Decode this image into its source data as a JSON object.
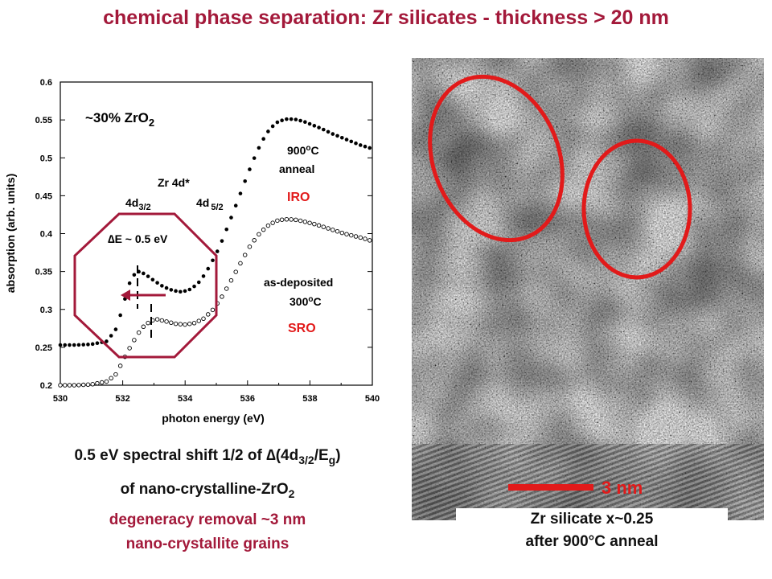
{
  "title": "chemical phase separation: Zr silicates - thickness > 20 nm",
  "chart_data": {
    "type": "scatter",
    "xlabel": "photon energy (eV)",
    "ylabel": "absorption (arb. units)",
    "xlim": [
      530,
      540
    ],
    "ylim": [
      0.2,
      0.6
    ],
    "xticks": [
      "530",
      "532",
      "534",
      "536",
      "538",
      "540"
    ],
    "yticks": [
      "0.2",
      "0.25",
      "0.3",
      "0.35",
      "0.4",
      "0.45",
      "0.5",
      "0.55",
      "0.6"
    ],
    "grid": false,
    "series": [
      {
        "marker": "filled-circle",
        "x": [
          530.0,
          530.5,
          531.0,
          531.5,
          531.8,
          532.0,
          532.2,
          532.4,
          532.5,
          532.7,
          533.0,
          533.3,
          533.6,
          533.9,
          534.2,
          534.5,
          534.8,
          535.1,
          535.4,
          535.7,
          536.0,
          536.3,
          536.6,
          536.9,
          537.2,
          537.5,
          537.8,
          538.1,
          538.4,
          538.7,
          539.0,
          539.3,
          539.6,
          540.0
        ],
        "y": [
          0.253,
          0.253,
          0.254,
          0.258,
          0.275,
          0.303,
          0.333,
          0.348,
          0.35,
          0.347,
          0.338,
          0.33,
          0.325,
          0.323,
          0.327,
          0.338,
          0.358,
          0.382,
          0.413,
          0.445,
          0.478,
          0.508,
          0.532,
          0.546,
          0.551,
          0.551,
          0.548,
          0.543,
          0.538,
          0.532,
          0.527,
          0.522,
          0.517,
          0.512
        ]
      },
      {
        "marker": "open-circle",
        "x": [
          530.0,
          530.5,
          531.0,
          531.5,
          531.8,
          532.0,
          532.3,
          532.6,
          532.9,
          533.1,
          533.4,
          533.7,
          534.0,
          534.3,
          534.6,
          534.9,
          535.2,
          535.5,
          535.8,
          536.1,
          536.4,
          536.7,
          537.0,
          537.3,
          537.6,
          537.9,
          538.2,
          538.5,
          538.8,
          539.1,
          539.4,
          539.7,
          540.0
        ],
        "y": [
          0.2,
          0.2,
          0.201,
          0.205,
          0.215,
          0.232,
          0.255,
          0.275,
          0.285,
          0.287,
          0.284,
          0.281,
          0.28,
          0.282,
          0.288,
          0.3,
          0.318,
          0.34,
          0.363,
          0.385,
          0.401,
          0.412,
          0.418,
          0.419,
          0.418,
          0.415,
          0.412,
          0.408,
          0.404,
          0.4,
          0.397,
          0.394,
          0.39
        ]
      }
    ],
    "annotations": {
      "composition": "~30% ZrO",
      "composition_sub": "2",
      "zr4d": "Zr 4d*",
      "d32": "4d",
      "d32_sub": "3/2",
      "d52": "4d",
      "d52_sub": "5/2",
      "delta_e": "∆E ~ 0.5 eV",
      "anneal_temp": "900",
      "anneal_sup": "o",
      "anneal_unit": "C",
      "anneal": "anneal",
      "iro": "IRO",
      "as_deposited": "as-deposited",
      "dep_temp": "300",
      "dep_sup": "o",
      "dep_unit": "C",
      "sro": "SRO"
    }
  },
  "captions": {
    "line1_a": "0.5 eV spectral shift 1/2 of ∆(4d",
    "line1_sub1": "3/2",
    "line1_b": "/E",
    "line1_sub2": "g",
    "line1_c": ")",
    "line2_a": "of nano-crystalline-ZrO",
    "line2_sub": "2",
    "line3": "degeneracy removal ~3 nm",
    "line4": "nano-crystallite grains"
  },
  "tem": {
    "scale_label": "3 nm",
    "caption_line1": "Zr silicate x~0.25",
    "caption_line2": "after 900°C anneal"
  },
  "colors": {
    "title": "#a3193a",
    "accent": "#a3193a",
    "highlight": "#e21a1a"
  }
}
